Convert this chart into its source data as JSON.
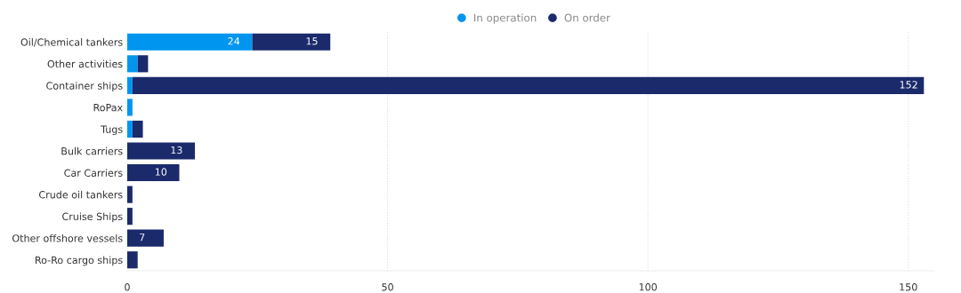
{
  "chart_data": {
    "type": "bar",
    "orientation": "horizontal",
    "stacked": true,
    "categories": [
      "Oil/Chemical tankers",
      "Other activities",
      "Container ships",
      "RoPax",
      "Tugs",
      "Bulk carriers",
      "Car Carriers",
      "Crude oil tankers",
      "Cruise Ships",
      "Other offshore vessels",
      "Ro-Ro cargo ships"
    ],
    "series": [
      {
        "name": "In operation",
        "color": "#0096f0",
        "values": [
          24,
          2,
          1,
          1,
          1,
          null,
          null,
          null,
          null,
          null,
          null
        ],
        "value_labels": [
          "24",
          null,
          null,
          null,
          null,
          null,
          null,
          null,
          null,
          null,
          null
        ]
      },
      {
        "name": "On order",
        "color": "#1b2a6b",
        "values": [
          15,
          2,
          152,
          null,
          2,
          13,
          10,
          1,
          1,
          7,
          2
        ],
        "value_labels": [
          "15",
          null,
          "152",
          null,
          null,
          "13",
          "10",
          null,
          null,
          "7",
          null
        ]
      }
    ],
    "xlim": [
      0,
      155
    ],
    "xticks": [
      0,
      50,
      100,
      150
    ],
    "grid": "x",
    "legend": "top"
  }
}
